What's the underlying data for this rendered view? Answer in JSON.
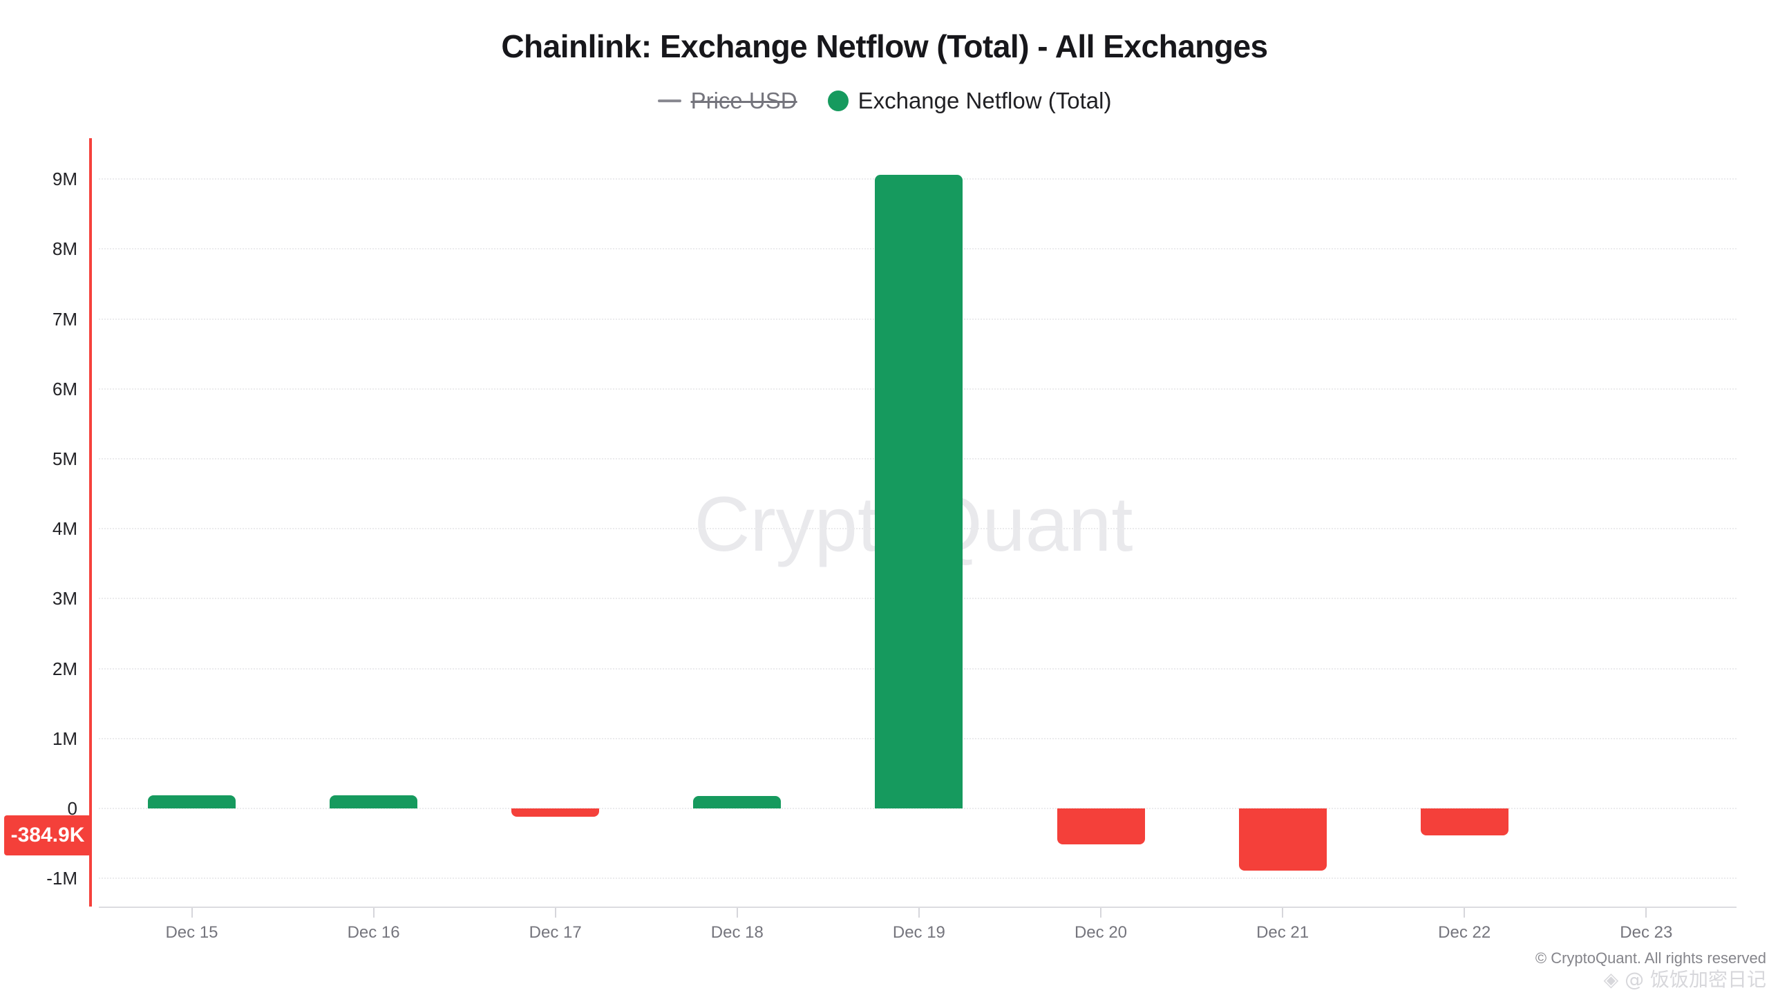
{
  "page": {
    "background": "#ffffff"
  },
  "header": {
    "title": "Chainlink: Exchange Netflow (Total) - All Exchanges"
  },
  "legend": {
    "items": [
      {
        "label": "Price USD",
        "marker": "line-icon",
        "color": "#8a8a92",
        "disabled": true
      },
      {
        "label": "Exchange Netflow (Total)",
        "marker": "circle-icon",
        "color": "#169a5e",
        "disabled": false
      }
    ]
  },
  "watermark": {
    "text": "CryptoQuant"
  },
  "y_axis_badge": {
    "label": "-384.9K",
    "value": -384900,
    "color": "#f4403a"
  },
  "footer": {
    "copyright": "© CryptoQuant. All rights reserved",
    "watermark": "◈ @ 饭饭加密日记"
  },
  "chart_data": {
    "type": "bar",
    "title": "Chainlink: Exchange Netflow (Total) - All Exchanges",
    "series_name": "Exchange Netflow (Total)",
    "categories": [
      "Dec 15",
      "Dec 16",
      "Dec 17",
      "Dec 18",
      "Dec 19",
      "Dec 20",
      "Dec 21",
      "Dec 22",
      "Dec 23"
    ],
    "values": [
      190000,
      185000,
      -120000,
      180000,
      9060000,
      -515000,
      -890000,
      -384900,
      null
    ],
    "latest_value_label": "-384.9K",
    "yticks": [
      {
        "label": "9M",
        "value": 9000000
      },
      {
        "label": "8M",
        "value": 8000000
      },
      {
        "label": "7M",
        "value": 7000000
      },
      {
        "label": "6M",
        "value": 6000000
      },
      {
        "label": "5M",
        "value": 5000000
      },
      {
        "label": "4M",
        "value": 4000000
      },
      {
        "label": "3M",
        "value": 3000000
      },
      {
        "label": "2M",
        "value": 2000000
      },
      {
        "label": "1M",
        "value": 1000000
      },
      {
        "label": "0",
        "value": 0
      },
      {
        "label": "-1M",
        "value": -1000000
      }
    ],
    "ylim": [
      -1400000,
      9580000
    ],
    "xlabel": "",
    "ylabel": "",
    "grid": "horizontal-dotted",
    "legend_position": "top",
    "colors": {
      "positive": "#169a5e",
      "negative": "#f4403a",
      "y_axis_line": "#f5413c",
      "grid_line": "#ebebed",
      "x_axis_line": "#dcdce0",
      "watermark": "#e9e9ec"
    }
  }
}
